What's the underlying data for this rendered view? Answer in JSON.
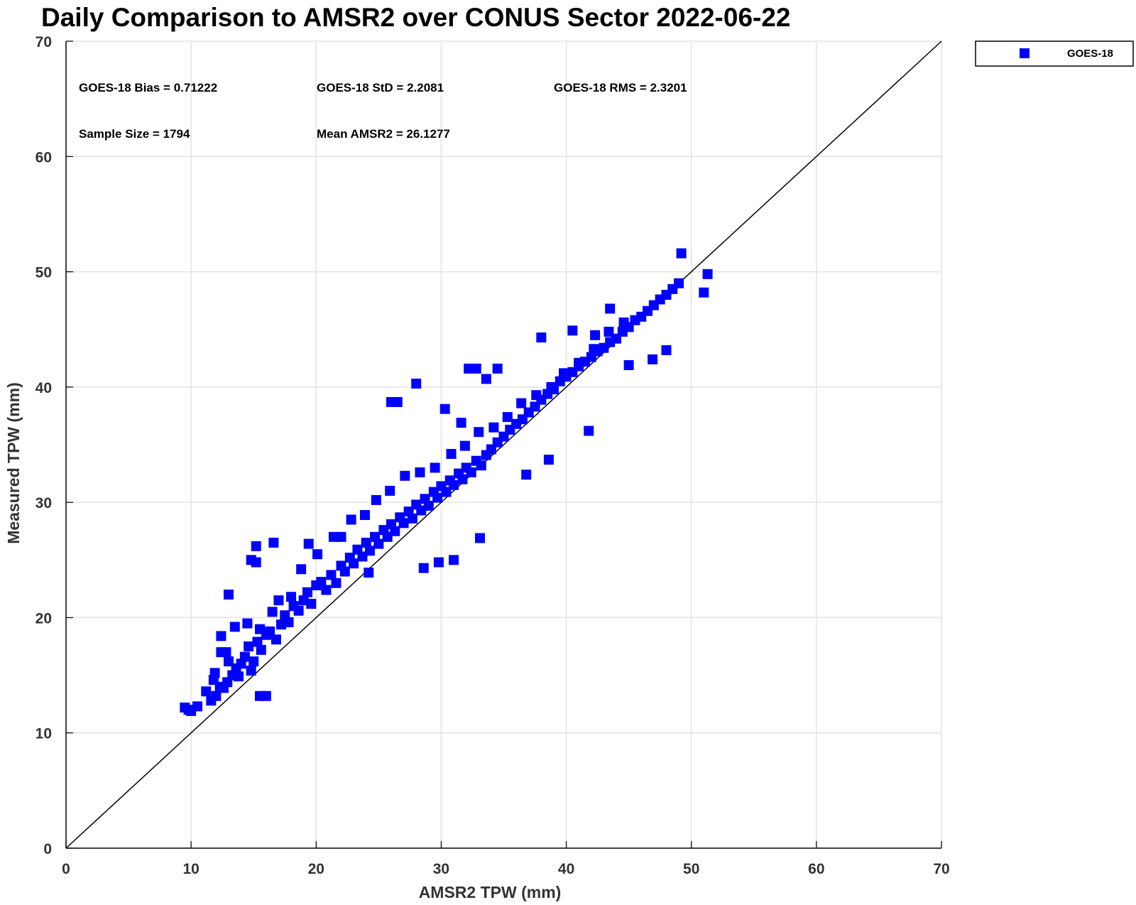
{
  "chart_data": {
    "type": "scatter",
    "title": "Daily Comparison to AMSR2 over CONUS Sector 2022-06-22",
    "xlabel": "AMSR2 TPW (mm)",
    "ylabel": "Measured TPW (mm)",
    "xlim": [
      0,
      70
    ],
    "ylim": [
      0,
      70
    ],
    "x_ticks": [
      "0",
      "10",
      "20",
      "30",
      "40",
      "50",
      "60",
      "70"
    ],
    "y_ticks": [
      "0",
      "10",
      "20",
      "30",
      "40",
      "50",
      "60",
      "70"
    ],
    "grid": true,
    "legend_position": "outside-top-right",
    "reference_line": "one-to-one",
    "series": [
      {
        "name": "GOES-18",
        "color": "#0000ff",
        "marker": "square",
        "x": [
          9.5,
          10.0,
          10.5,
          9.8,
          11.2,
          11.6,
          12.0,
          12.3,
          11.8,
          12.6,
          12.9,
          13.3,
          13.0,
          12.4,
          11.9,
          13.6,
          14.0,
          13.8,
          14.3,
          14.6,
          15.0,
          14.8,
          15.3,
          15.6,
          16.0,
          15.5,
          16.3,
          16.8,
          17.2,
          16.5,
          17.5,
          17.8,
          18.2,
          18.6,
          18.0,
          19.0,
          19.3,
          19.6,
          20.0,
          20.4,
          20.8,
          21.2,
          21.6,
          22.0,
          22.3,
          22.7,
          23.0,
          23.3,
          23.7,
          24.0,
          24.3,
          24.7,
          25.0,
          25.4,
          25.7,
          26.0,
          26.3,
          26.7,
          27.0,
          27.4,
          27.7,
          28.0,
          28.4,
          28.7,
          29.0,
          29.4,
          29.7,
          30.0,
          30.4,
          30.7,
          31.0,
          31.4,
          31.7,
          32.0,
          32.4,
          32.8,
          33.2,
          33.6,
          34.0,
          34.5,
          35.0,
          35.5,
          36.0,
          36.5,
          37.0,
          37.5,
          38.0,
          38.5,
          39.0,
          39.5,
          40.0,
          40.5,
          41.0,
          41.5,
          42.0,
          42.5,
          43.0,
          43.5,
          44.0,
          44.5,
          45.0,
          45.5,
          46.0,
          46.5,
          47.0,
          47.5,
          48.0,
          48.5,
          49.0,
          49.2,
          51.0,
          51.3,
          15.2,
          16.6,
          13.0,
          19.4,
          14.8,
          15.2,
          12.4,
          15.5,
          16.0,
          26.0,
          26.5,
          28.0,
          32.2,
          32.8,
          33.6,
          34.5,
          22.0,
          30.3,
          31.6,
          38.0,
          40.5,
          42.3,
          43.5,
          24.2,
          28.6,
          29.8,
          31.0,
          33.1,
          36.8,
          38.6,
          41.8,
          45.0,
          46.9,
          48.0,
          12.8,
          13.5,
          14.5,
          17.0,
          18.8,
          20.1,
          21.4,
          22.8,
          23.9,
          24.8,
          25.9,
          27.1,
          28.3,
          29.5,
          30.8,
          31.9,
          33.0,
          34.2,
          35.3,
          36.4,
          37.6,
          38.8,
          39.8,
          41.0,
          42.2,
          43.4,
          44.6
        ],
        "y": [
          12.2,
          11.9,
          12.3,
          12.0,
          13.6,
          12.8,
          13.2,
          14.0,
          14.6,
          13.9,
          14.4,
          15.0,
          16.2,
          17.0,
          15.2,
          15.6,
          16.0,
          14.9,
          16.6,
          17.5,
          16.2,
          15.4,
          17.9,
          17.2,
          18.5,
          19.0,
          18.8,
          18.1,
          19.4,
          20.5,
          20.2,
          19.6,
          21.0,
          20.6,
          21.8,
          21.5,
          22.2,
          21.2,
          22.8,
          23.1,
          22.4,
          23.7,
          23.0,
          24.5,
          24.0,
          25.2,
          24.7,
          25.9,
          25.3,
          26.5,
          25.8,
          27.0,
          26.4,
          27.6,
          27.0,
          28.1,
          27.5,
          28.7,
          28.2,
          29.2,
          28.6,
          29.8,
          29.3,
          30.3,
          29.7,
          30.9,
          30.4,
          31.4,
          30.9,
          31.9,
          31.5,
          32.5,
          32.0,
          33.0,
          32.6,
          33.6,
          33.2,
          34.1,
          34.6,
          35.2,
          35.7,
          36.3,
          36.8,
          37.2,
          37.8,
          38.3,
          38.9,
          39.4,
          39.8,
          40.5,
          40.9,
          41.3,
          41.8,
          42.2,
          42.6,
          43.1,
          43.4,
          43.9,
          44.2,
          44.8,
          45.2,
          45.8,
          46.1,
          46.6,
          47.1,
          47.6,
          48.0,
          48.5,
          49.0,
          51.6,
          48.2,
          49.8,
          26.2,
          26.5,
          22.0,
          26.4,
          25.0,
          24.8,
          18.4,
          13.2,
          13.2,
          38.7,
          38.7,
          40.3,
          41.6,
          41.6,
          40.7,
          41.6,
          27.0,
          38.1,
          36.9,
          44.3,
          44.9,
          44.5,
          46.8,
          23.9,
          24.3,
          24.8,
          25.0,
          26.9,
          32.4,
          33.7,
          36.2,
          41.9,
          42.4,
          43.2,
          17.0,
          19.2,
          19.5,
          21.5,
          24.2,
          25.5,
          27.0,
          28.5,
          28.9,
          30.2,
          31.0,
          32.3,
          32.6,
          33.0,
          34.2,
          34.9,
          36.1,
          36.5,
          37.4,
          38.6,
          39.3,
          40.0,
          41.2,
          42.1,
          43.3,
          44.8,
          45.6
        ]
      }
    ],
    "annotations": [
      "GOES-18 Bias = 0.71222",
      "GOES-18 StD = 2.2081",
      "GOES-18 RMS = 2.3201",
      "Sample Size = 1794",
      "Mean AMSR2 = 26.1277"
    ]
  }
}
